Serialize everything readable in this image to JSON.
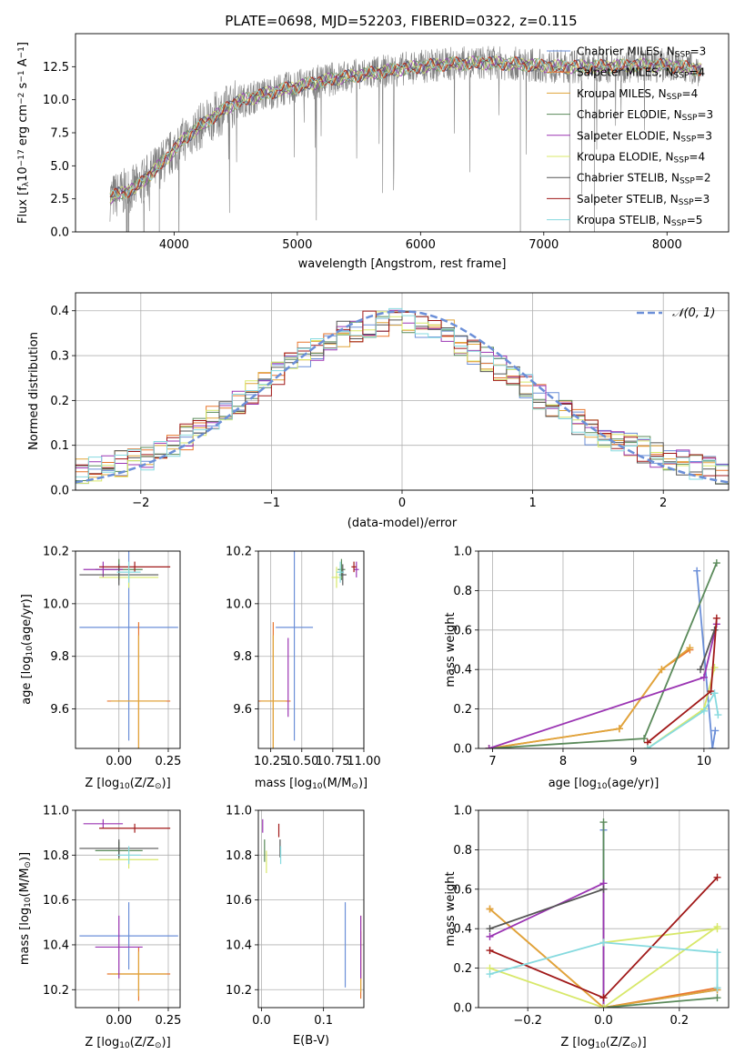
{
  "title": "PLATE=0698, MJD=52203, FIBERID=0322, z=0.115",
  "colors": {
    "chabrier_miles": "#6b8fd8",
    "salpeter_miles": "#e8772e",
    "kroupa_miles": "#e0a53a",
    "chabrier_elodie": "#5a8a5a",
    "salpeter_elodie": "#9b35b3",
    "kroupa_elodie": "#d8e86a",
    "chabrier_stelib": "#555555",
    "salpeter_stelib": "#a01818",
    "kroupa_stelib": "#86dadf",
    "observed": "#808080",
    "gaussian": "#6b8fd8"
  },
  "chart_data": [
    {
      "type": "line",
      "id": "spectrum",
      "title": "PLATE=0698, MJD=52203, FIBERID=0322, z=0.115",
      "xlabel": "wavelength [Angstrom, rest frame]",
      "ylabel_parts": [
        "Flux [f",
        "λ",
        "10",
        "−17",
        " erg cm",
        "−2",
        " s",
        "−1",
        " A",
        "−1",
        "]"
      ],
      "xlim": [
        3200,
        8500
      ],
      "ylim": [
        0,
        15
      ],
      "xticks": [
        4000,
        5000,
        6000,
        7000,
        8000
      ],
      "yticks": [
        0.0,
        2.5,
        5.0,
        7.5,
        10.0,
        12.5
      ],
      "observed_range": [
        3480,
        8280
      ],
      "continuum": [
        [
          3480,
          2.6
        ],
        [
          3700,
          3.4
        ],
        [
          3900,
          5.2
        ],
        [
          4100,
          7.2
        ],
        [
          4300,
          8.6
        ],
        [
          4500,
          9.8
        ],
        [
          4800,
          10.6
        ],
        [
          5000,
          11.0
        ],
        [
          5300,
          11.6
        ],
        [
          5600,
          12.0
        ],
        [
          5900,
          12.4
        ],
        [
          6200,
          12.7
        ],
        [
          6500,
          12.8
        ],
        [
          6800,
          12.7
        ],
        [
          7100,
          12.5
        ],
        [
          7400,
          12.5
        ],
        [
          7800,
          12.6
        ],
        [
          8000,
          12.6
        ],
        [
          8280,
          12.3
        ]
      ],
      "legend_position": "upper right",
      "legend": [
        {
          "label": "Chabrier MILES, N",
          "sub": "SSP",
          "suffix": "=3",
          "color_key": "chabrier_miles"
        },
        {
          "label": "Salpeter MILES, N",
          "sub": "SSP",
          "suffix": "=4",
          "color_key": "salpeter_miles"
        },
        {
          "label": "Kroupa MILES, N",
          "sub": "SSP",
          "suffix": "=4",
          "color_key": "kroupa_miles"
        },
        {
          "label": "Chabrier ELODIE, N",
          "sub": "SSP",
          "suffix": "=3",
          "color_key": "chabrier_elodie"
        },
        {
          "label": "Salpeter ELODIE, N",
          "sub": "SSP",
          "suffix": "=3",
          "color_key": "salpeter_elodie"
        },
        {
          "label": "Kroupa ELODIE, N",
          "sub": "SSP",
          "suffix": "=4",
          "color_key": "kroupa_elodie"
        },
        {
          "label": "Chabrier STELIB, N",
          "sub": "SSP",
          "suffix": "=2",
          "color_key": "chabrier_stelib"
        },
        {
          "label": "Salpeter STELIB, N",
          "sub": "SSP",
          "suffix": "=3",
          "color_key": "salpeter_stelib"
        },
        {
          "label": "Kroupa STELIB, N",
          "sub": "SSP",
          "suffix": "=5",
          "color_key": "kroupa_stelib"
        }
      ]
    },
    {
      "type": "histogram",
      "id": "residuals",
      "xlabel": "(data-model)/error",
      "ylabel": "Normed distribution",
      "xlim": [
        -2.5,
        2.5
      ],
      "ylim": [
        0,
        0.44
      ],
      "xticks": [
        -2,
        -1,
        0,
        1,
        2
      ],
      "yticks": [
        0.0,
        0.1,
        0.2,
        0.3,
        0.4
      ],
      "grid": true,
      "bins": 50,
      "reference_curve": {
        "label_math": "𝒩(0, 1)",
        "mean": 0,
        "sigma": 1
      },
      "legend_position": "upper right",
      "series_profile": [
        0.045,
        0.05,
        0.055,
        0.06,
        0.065,
        0.07,
        0.08,
        0.1,
        0.12,
        0.14,
        0.16,
        0.18,
        0.2,
        0.22,
        0.24,
        0.26,
        0.28,
        0.3,
        0.31,
        0.33,
        0.35,
        0.36,
        0.37,
        0.37,
        0.38,
        0.38,
        0.37,
        0.36,
        0.35,
        0.33,
        0.31,
        0.29,
        0.27,
        0.25,
        0.23,
        0.21,
        0.19,
        0.17,
        0.15,
        0.13,
        0.12,
        0.11,
        0.1,
        0.09,
        0.08,
        0.07,
        0.06,
        0.05,
        0.045,
        0.04
      ]
    },
    {
      "type": "scatter",
      "id": "age_vs_Z",
      "xlabel_parts": [
        "Z [log",
        "10",
        "(Z/Z",
        "⊙",
        ")]"
      ],
      "ylabel_parts": [
        "age  [log",
        "10",
        "(age/yr)]"
      ],
      "xlim": [
        -0.22,
        0.31
      ],
      "ylim": [
        9.45,
        10.2
      ],
      "xticks": [
        0.0,
        0.25
      ],
      "yticks": [
        9.6,
        9.8,
        10.0,
        10.2
      ],
      "points": [
        {
          "model": "chabrier_miles",
          "x": 0.05,
          "y": 9.91,
          "xerr": 0.25,
          "yerr": 0.43
        },
        {
          "model": "salpeter_miles",
          "x": 0.1,
          "y": 9.63,
          "xerr": 0.16,
          "yerr": 0.3
        },
        {
          "model": "kroupa_miles",
          "x": 0.1,
          "y": 9.63,
          "xerr": 0.14,
          "yerr": 0.25
        },
        {
          "model": "chabrier_elodie",
          "x": 0.0,
          "y": 10.13,
          "xerr": 0.12,
          "yerr": 0.04
        },
        {
          "model": "salpeter_elodie",
          "x": -0.08,
          "y": 10.13,
          "xerr": 0.1,
          "yerr": 0.03
        },
        {
          "model": "kroupa_elodie",
          "x": 0.05,
          "y": 10.1,
          "xerr": 0.15,
          "yerr": 0.04
        },
        {
          "model": "chabrier_stelib",
          "x": 0.0,
          "y": 10.11,
          "xerr": 0.2,
          "yerr": 0.04
        },
        {
          "model": "salpeter_stelib",
          "x": 0.08,
          "y": 10.14,
          "xerr": 0.18,
          "yerr": 0.02
        },
        {
          "model": "kroupa_stelib",
          "x": 0.05,
          "y": 10.12,
          "xerr": 0.06,
          "yerr": 0.04
        }
      ]
    },
    {
      "type": "scatter",
      "id": "age_vs_mass",
      "xlabel_parts": [
        "mass [log",
        "10",
        "(M/M",
        "⊙",
        ")]"
      ],
      "xlim": [
        10.15,
        11.0
      ],
      "ylim": [
        9.45,
        10.2
      ],
      "xticks": [
        10.25,
        10.5,
        10.75,
        11.0
      ],
      "xticklabels": [
        "10.25",
        "10.50",
        "10.75",
        "11.00"
      ],
      "yticks": [
        9.6,
        9.8,
        10.0,
        10.2
      ],
      "points": [
        {
          "model": "chabrier_miles",
          "x": 10.44,
          "y": 9.91,
          "xerr": 0.15,
          "yerr": 0.43
        },
        {
          "model": "salpeter_miles",
          "x": 10.27,
          "y": 9.63,
          "xerr": 0.14,
          "yerr": 0.3
        },
        {
          "model": "kroupa_miles",
          "x": 10.27,
          "y": 9.63,
          "xerr": 0.1,
          "yerr": 0.25
        },
        {
          "model": "chabrier_elodie",
          "x": 10.82,
          "y": 10.13,
          "xerr": 0.03,
          "yerr": 0.04
        },
        {
          "model": "salpeter_elodie",
          "x": 10.94,
          "y": 10.13,
          "xerr": 0.02,
          "yerr": 0.03
        },
        {
          "model": "kroupa_elodie",
          "x": 10.78,
          "y": 10.1,
          "xerr": 0.04,
          "yerr": 0.04
        },
        {
          "model": "chabrier_stelib",
          "x": 10.83,
          "y": 10.11,
          "xerr": 0.03,
          "yerr": 0.04
        },
        {
          "model": "salpeter_stelib",
          "x": 10.92,
          "y": 10.14,
          "xerr": 0.02,
          "yerr": 0.02
        },
        {
          "model": "kroupa_stelib",
          "x": 10.81,
          "y": 10.12,
          "xerr": 0.03,
          "yerr": 0.04
        },
        {
          "model": "salpeter_elodie",
          "x": 10.39,
          "y": 9.72,
          "xerr": 0.0,
          "yerr": 0.15
        }
      ]
    },
    {
      "type": "line",
      "id": "weight_vs_age",
      "xlabel_parts": [
        "age  [log",
        "10",
        "(age/yr)]"
      ],
      "ylabel": "mass weight",
      "xlim": [
        6.8,
        10.35
      ],
      "ylim": [
        0,
        1.0
      ],
      "xticks": [
        7,
        8,
        9,
        10
      ],
      "yticks": [
        0.0,
        0.2,
        0.4,
        0.6,
        0.8,
        1.0
      ],
      "grid": true,
      "series": [
        {
          "model": "chabrier_miles",
          "x": [
            9.9,
            10.12,
            10.16
          ],
          "y": [
            0.9,
            0.0,
            0.09
          ]
        },
        {
          "model": "salpeter_miles",
          "x": [
            6.95,
            8.8,
            9.4,
            9.8
          ],
          "y": [
            0.0,
            0.1,
            0.4,
            0.5
          ]
        },
        {
          "model": "kroupa_miles",
          "x": [
            6.95,
            8.8,
            9.4,
            9.8
          ],
          "y": [
            0.0,
            0.1,
            0.4,
            0.51
          ]
        },
        {
          "model": "chabrier_elodie",
          "x": [
            6.95,
            9.15,
            10.18
          ],
          "y": [
            0.0,
            0.05,
            0.94
          ]
        },
        {
          "model": "salpeter_elodie",
          "x": [
            6.95,
            10.0,
            10.18
          ],
          "y": [
            0.0,
            0.36,
            0.63
          ]
        },
        {
          "model": "kroupa_elodie",
          "x": [
            9.2,
            10.0,
            10.15
          ],
          "y": [
            0.0,
            0.2,
            0.41
          ]
        },
        {
          "model": "chabrier_stelib",
          "x": [
            9.95,
            10.15
          ],
          "y": [
            0.4,
            0.6
          ]
        },
        {
          "model": "salpeter_stelib",
          "x": [
            9.2,
            10.1,
            10.18
          ],
          "y": [
            0.03,
            0.29,
            0.66
          ]
        },
        {
          "model": "kroupa_stelib",
          "x": [
            9.2,
            10.0,
            10.15,
            10.2
          ],
          "y": [
            0.0,
            0.19,
            0.28,
            0.17
          ]
        }
      ]
    },
    {
      "type": "scatter",
      "id": "mass_vs_Z",
      "xlabel_parts": [
        "Z [log",
        "10",
        "(Z/Z",
        "⊙",
        ")]"
      ],
      "ylabel_parts": [
        "mass [log",
        "10",
        "(M/M",
        "⊙",
        ")]"
      ],
      "xlim": [
        -0.22,
        0.31
      ],
      "ylim": [
        10.12,
        11.0
      ],
      "xticks": [
        0.0,
        0.25
      ],
      "yticks": [
        10.2,
        10.4,
        10.6,
        10.8,
        11.0
      ],
      "points": [
        {
          "model": "chabrier_miles",
          "x": 0.05,
          "y": 10.44,
          "xerr": 0.25,
          "yerr": 0.15
        },
        {
          "model": "salpeter_miles",
          "x": 0.1,
          "y": 10.27,
          "xerr": 0.16,
          "yerr": 0.12
        },
        {
          "model": "kroupa_miles",
          "x": 0.1,
          "y": 10.27,
          "xerr": 0.14,
          "yerr": 0.1
        },
        {
          "model": "chabrier_elodie",
          "x": 0.0,
          "y": 10.82,
          "xerr": 0.12,
          "yerr": 0.04
        },
        {
          "model": "salpeter_elodie",
          "x": -0.08,
          "y": 10.94,
          "xerr": 0.1,
          "yerr": 0.02
        },
        {
          "model": "kroupa_elodie",
          "x": 0.05,
          "y": 10.78,
          "xerr": 0.15,
          "yerr": 0.04
        },
        {
          "model": "chabrier_stelib",
          "x": 0.0,
          "y": 10.83,
          "xerr": 0.2,
          "yerr": 0.04
        },
        {
          "model": "salpeter_stelib",
          "x": 0.08,
          "y": 10.92,
          "xerr": 0.18,
          "yerr": 0.02
        },
        {
          "model": "kroupa_stelib",
          "x": 0.05,
          "y": 10.8,
          "xerr": 0.06,
          "yerr": 0.04
        },
        {
          "model": "salpeter_elodie",
          "x": 0.0,
          "y": 10.39,
          "xerr": 0.12,
          "yerr": 0.14
        }
      ]
    },
    {
      "type": "scatter",
      "id": "mass_vs_ebv",
      "xlabel": "E(B-V)",
      "xlim": [
        -0.005,
        0.165
      ],
      "ylim": [
        10.12,
        11.0
      ],
      "xticks": [
        0.0,
        0.1
      ],
      "yticks": [
        10.2,
        10.4,
        10.6,
        10.8,
        11.0
      ],
      "points": [
        {
          "model": "chabrier_miles",
          "x": 0.135,
          "y": 10.4,
          "xerr": 0,
          "yerr": 0.19
        },
        {
          "model": "salpeter_miles",
          "x": 0.16,
          "y": 10.31,
          "xerr": 0,
          "yerr": 0.15
        },
        {
          "model": "kroupa_miles",
          "x": 0.16,
          "y": 10.36,
          "xerr": 0,
          "yerr": 0.17
        },
        {
          "model": "chabrier_elodie",
          "x": 0.005,
          "y": 10.82,
          "xerr": 0,
          "yerr": 0.05
        },
        {
          "model": "salpeter_elodie",
          "x": 0.002,
          "y": 10.93,
          "xerr": 0,
          "yerr": 0.03
        },
        {
          "model": "kroupa_elodie",
          "x": 0.008,
          "y": 10.77,
          "xerr": 0,
          "yerr": 0.05
        },
        {
          "model": "chabrier_stelib",
          "x": 0.03,
          "y": 10.83,
          "xerr": 0,
          "yerr": 0.04
        },
        {
          "model": "salpeter_stelib",
          "x": 0.028,
          "y": 10.91,
          "xerr": 0,
          "yerr": 0.03
        },
        {
          "model": "kroupa_stelib",
          "x": 0.031,
          "y": 10.8,
          "xerr": 0,
          "yerr": 0.04
        },
        {
          "model": "salpeter_elodie",
          "x": 0.16,
          "y": 10.39,
          "xerr": 0,
          "yerr": 0.14
        }
      ]
    },
    {
      "type": "line",
      "id": "weight_vs_Z",
      "xlabel_parts": [
        "Z [log",
        "10",
        "(Z/Z",
        "⊙",
        ")]"
      ],
      "ylabel": "mass weight",
      "xlim": [
        -0.33,
        0.33
      ],
      "ylim": [
        0,
        1.0
      ],
      "xticks": [
        -0.2,
        0.0,
        0.2
      ],
      "yticks": [
        0.0,
        0.2,
        0.4,
        0.6,
        0.8,
        1.0
      ],
      "grid": true,
      "series": [
        {
          "model": "chabrier_miles",
          "x": [
            0.0,
            0.0,
            0.3
          ],
          "y": [
            0.9,
            0.0,
            0.09
          ]
        },
        {
          "model": "salpeter_miles",
          "x": [
            -0.3,
            0.0,
            0.3
          ],
          "y": [
            0.5,
            0.0,
            0.1
          ]
        },
        {
          "model": "kroupa_miles",
          "x": [
            -0.3,
            0.0,
            0.3
          ],
          "y": [
            0.5,
            0.0,
            0.09
          ]
        },
        {
          "model": "chabrier_elodie",
          "x": [
            0.0,
            0.0,
            0.3
          ],
          "y": [
            0.94,
            0.0,
            0.05
          ]
        },
        {
          "model": "salpeter_elodie",
          "x": [
            -0.3,
            0.0,
            0.0
          ],
          "y": [
            0.36,
            0.63,
            0.0
          ]
        },
        {
          "model": "kroupa_elodie",
          "x": [
            -0.3,
            0.0,
            0.3
          ],
          "y": [
            0.2,
            0.0,
            0.41
          ]
        },
        {
          "model": "kroupa_elodie",
          "x": [
            0.0,
            0.3
          ],
          "y": [
            0.33,
            0.4
          ]
        },
        {
          "model": "chabrier_stelib",
          "x": [
            -0.3,
            0.0
          ],
          "y": [
            0.4,
            0.6
          ]
        },
        {
          "model": "salpeter_stelib",
          "x": [
            -0.3,
            0.0,
            0.3
          ],
          "y": [
            0.29,
            0.05,
            0.66
          ]
        },
        {
          "model": "kroupa_stelib",
          "x": [
            -0.3,
            0.0,
            0.3,
            0.3
          ],
          "y": [
            0.17,
            0.33,
            0.28,
            0.1
          ]
        }
      ]
    }
  ]
}
